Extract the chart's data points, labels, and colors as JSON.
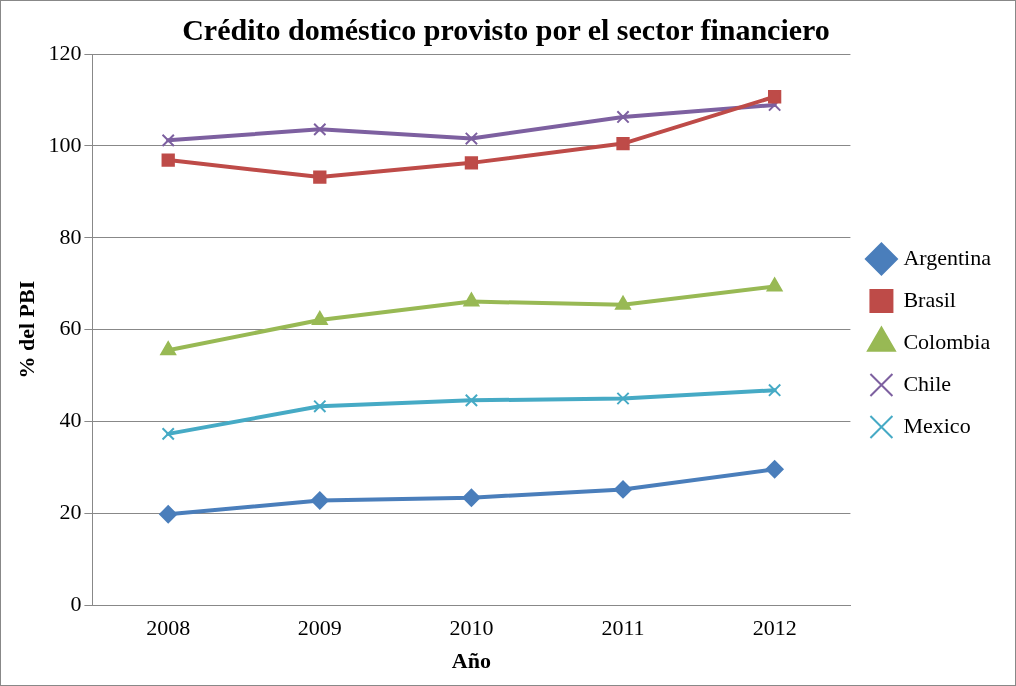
{
  "chart_data": {
    "type": "line",
    "title": "Crédito doméstico provisto por el sector financiero",
    "xlabel": "Año",
    "ylabel": "% del PBI",
    "categories": [
      "2008",
      "2009",
      "2010",
      "2011",
      "2012"
    ],
    "series": [
      {
        "name": "Argentina",
        "color": "#4a7ebb",
        "marker": "diamond",
        "values": [
          19.8,
          22.8,
          23.4,
          25.2,
          29.6
        ]
      },
      {
        "name": "Brasil",
        "color": "#be4b48",
        "marker": "square",
        "values": [
          96.9,
          93.2,
          96.3,
          100.5,
          110.7
        ]
      },
      {
        "name": "Colombia",
        "color": "#98b954",
        "marker": "triangle",
        "values": [
          55.5,
          62.1,
          66.1,
          65.4,
          69.4
        ]
      },
      {
        "name": "Chile",
        "color": "#7d60a0",
        "marker": "cross",
        "values": [
          101.2,
          103.6,
          101.6,
          106.3,
          108.9
        ]
      },
      {
        "name": "Mexico",
        "color": "#46aac5",
        "marker": "cross",
        "values": [
          37.3,
          43.3,
          44.6,
          45.0,
          46.8
        ]
      }
    ],
    "ylim": [
      0,
      120
    ],
    "yticks": [
      0,
      20,
      40,
      60,
      80,
      100,
      120
    ],
    "grid": "y",
    "legend": "right",
    "line_style": "solid"
  }
}
